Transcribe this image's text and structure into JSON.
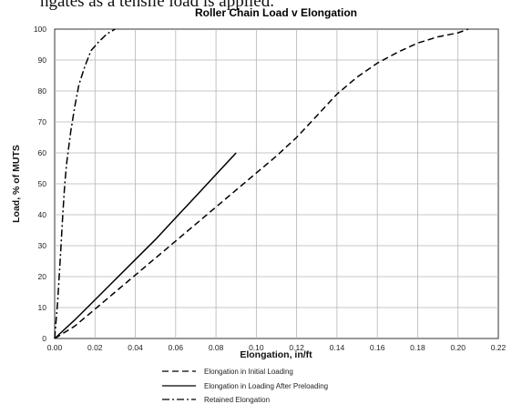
{
  "page": {
    "top_caption": "ngates as a tensile load is applied."
  },
  "chart_data": {
    "type": "line",
    "title": "Roller Chain Load v Elongation",
    "xlabel": "Elongation, in/ft",
    "ylabel": "Load, % of MUTS",
    "xlim": [
      0,
      0.22
    ],
    "ylim": [
      0,
      100
    ],
    "x_ticks": [
      "0.00",
      "0.02",
      "0.04",
      "0.06",
      "0.08",
      "0.10",
      "0.12",
      "0.14",
      "0.16",
      "0.18",
      "0.20",
      "0.22"
    ],
    "y_ticks": [
      "0",
      "10",
      "20",
      "30",
      "40",
      "50",
      "60",
      "70",
      "80",
      "90",
      "100"
    ],
    "grid": true,
    "legend_position": "bottom",
    "series": [
      {
        "name": "Elongation in Initial Loading",
        "style": "dashed",
        "color": "#000000",
        "points": [
          [
            0,
            0
          ],
          [
            0.01,
            4
          ],
          [
            0.02,
            9.5
          ],
          [
            0.03,
            15
          ],
          [
            0.04,
            20.5
          ],
          [
            0.05,
            26
          ],
          [
            0.06,
            31.5
          ],
          [
            0.07,
            37
          ],
          [
            0.08,
            42.5
          ],
          [
            0.09,
            48
          ],
          [
            0.1,
            53.5
          ],
          [
            0.11,
            59
          ],
          [
            0.12,
            65
          ],
          [
            0.13,
            72
          ],
          [
            0.14,
            79
          ],
          [
            0.15,
            84.5
          ],
          [
            0.16,
            89
          ],
          [
            0.17,
            92.5
          ],
          [
            0.18,
            95.5
          ],
          [
            0.19,
            97.5
          ],
          [
            0.2,
            98.8
          ],
          [
            0.205,
            100
          ]
        ]
      },
      {
        "name": "Elongation in Loading After Preloading",
        "style": "solid",
        "color": "#000000",
        "points": [
          [
            0,
            0
          ],
          [
            0.01,
            6
          ],
          [
            0.02,
            12.5
          ],
          [
            0.03,
            19
          ],
          [
            0.04,
            25.5
          ],
          [
            0.05,
            32
          ],
          [
            0.06,
            39
          ],
          [
            0.07,
            46
          ],
          [
            0.08,
            53
          ],
          [
            0.09,
            60
          ]
        ]
      },
      {
        "name": "Retained Elongation",
        "style": "dash-dot",
        "color": "#000000",
        "points": [
          [
            0,
            0
          ],
          [
            0.0015,
            12
          ],
          [
            0.003,
            28
          ],
          [
            0.004,
            40
          ],
          [
            0.005,
            50
          ],
          [
            0.006,
            57
          ],
          [
            0.008,
            67
          ],
          [
            0.01,
            75
          ],
          [
            0.012,
            82
          ],
          [
            0.015,
            88
          ],
          [
            0.018,
            93
          ],
          [
            0.022,
            96
          ],
          [
            0.026,
            98.5
          ],
          [
            0.03,
            100
          ]
        ]
      }
    ]
  }
}
